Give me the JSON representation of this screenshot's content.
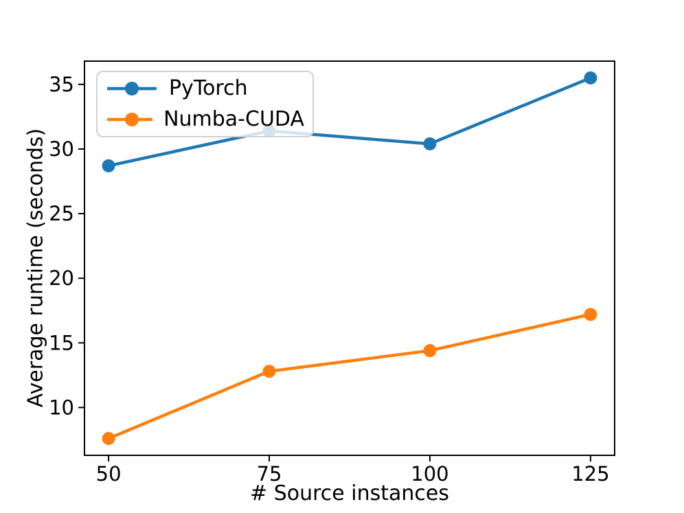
{
  "figure": {
    "background": "#ffffff",
    "text_color": "#000000",
    "spine_color": "#000000"
  },
  "legend": {
    "position": "upper left",
    "edge_color": "#cccccc"
  },
  "chart_data": {
    "type": "line",
    "x": [
      50,
      75,
      100,
      125
    ],
    "x_tick_labels": [
      "50",
      "75",
      "100",
      "125"
    ],
    "y_tick_values": [
      10,
      15,
      20,
      25,
      30,
      35
    ],
    "y_tick_labels": [
      "10",
      "15",
      "20",
      "25",
      "30",
      "35"
    ],
    "series": [
      {
        "name": "PyTorch",
        "color": "#1f77b4",
        "values": [
          28.7,
          31.4,
          30.4,
          35.5
        ]
      },
      {
        "name": "Numba-CUDA",
        "color": "#ff7f0e",
        "values": [
          7.6,
          12.8,
          14.4,
          17.2
        ]
      }
    ],
    "xlabel": "# Source instances",
    "ylabel": "Average runtime (seconds)",
    "xlim": [
      46.25,
      128.75
    ],
    "ylim": [
      6.3,
      36.8
    ],
    "grid": false,
    "legend_position": "upper left",
    "marker": "circle"
  }
}
